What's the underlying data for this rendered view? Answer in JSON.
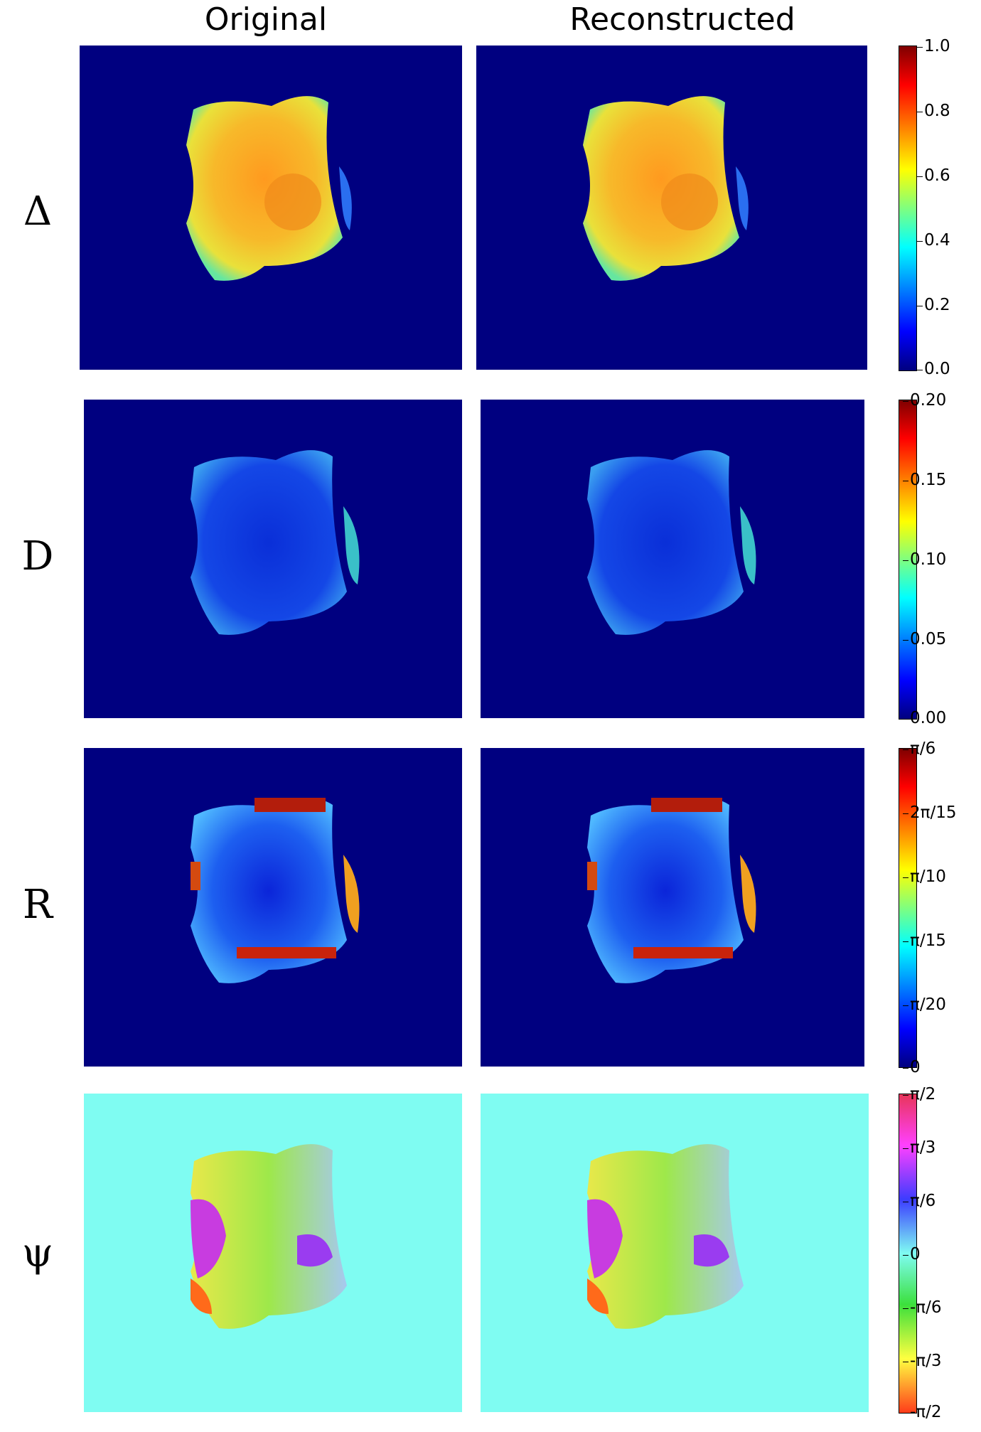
{
  "columns": {
    "original": "Original",
    "reconstructed": "Reconstructed"
  },
  "rows": [
    {
      "label": "Δ",
      "ticks": [
        "1.0",
        "0.8",
        "0.6",
        "0.4",
        "0.2",
        "0.0"
      ],
      "background": "#000080"
    },
    {
      "label": "D",
      "ticks": [
        "0.20",
        "0.15",
        "0.10",
        "0.05",
        "0.00"
      ],
      "background": "#000080"
    },
    {
      "label": "R",
      "ticks": [
        "π/6",
        "2π/15",
        "π/10",
        "π/15",
        "π/20",
        "0"
      ],
      "background": "#000080"
    },
    {
      "label": "ψ",
      "ticks": [
        "π/2",
        "π/3",
        "π/6",
        "0",
        "-π/6",
        "-π/3",
        "-π/2"
      ],
      "background": "#7ffcf2"
    }
  ],
  "colors": {
    "jet_top": "#7f0000",
    "jet_mid": "#7fff7f",
    "jet_bottom": "#00007f",
    "psi_background": "#7ffcf2"
  }
}
